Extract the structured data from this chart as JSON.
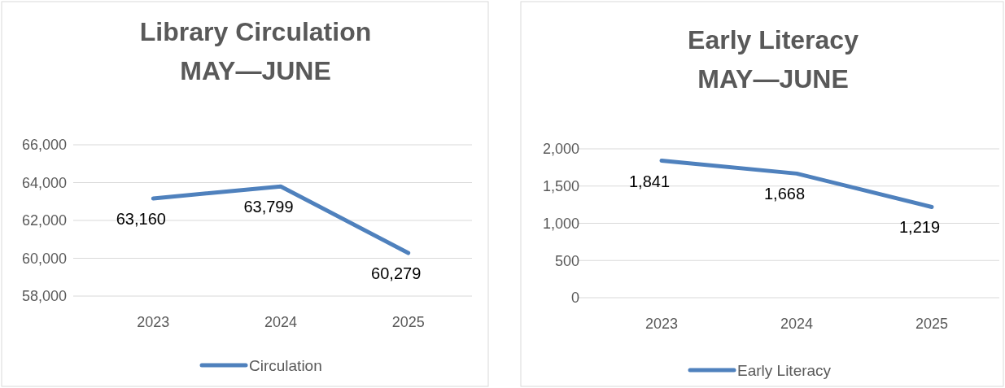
{
  "chart_data": [
    {
      "type": "line",
      "title": "Library Circulation",
      "subtitle": "MAY—JUNE",
      "categories": [
        "2023",
        "2024",
        "2025"
      ],
      "series": [
        {
          "name": "Circulation",
          "color": "#4f81bd",
          "values": [
            63160,
            63799,
            60279
          ],
          "value_labels": [
            "63,160",
            "63,799",
            "60,279"
          ]
        }
      ],
      "ylim": [
        58000,
        66000
      ],
      "yticks": [
        {
          "value": 58000,
          "label": "58,000"
        },
        {
          "value": 60000,
          "label": "60,000"
        },
        {
          "value": 62000,
          "label": "62,000"
        },
        {
          "value": 64000,
          "label": "64,000"
        },
        {
          "value": 66000,
          "label": "66,000"
        }
      ],
      "grid": "y",
      "legend": "bottom",
      "marker": "none",
      "line_style": "solid"
    },
    {
      "type": "line",
      "title": "Early Literacy",
      "subtitle": "MAY—JUNE",
      "categories": [
        "2023",
        "2024",
        "2025"
      ],
      "series": [
        {
          "name": "Early Literacy",
          "color": "#4f81bd",
          "values": [
            1841,
            1668,
            1219
          ],
          "value_labels": [
            "1,841",
            "1,668",
            "1,219"
          ]
        }
      ],
      "ylim": [
        0,
        2000
      ],
      "yticks": [
        0,
        500,
        {
          "value": 1000,
          "label": "1,000"
        },
        {
          "value": 1500,
          "label": "1,500"
        },
        {
          "value": 2000,
          "label": "2,000"
        }
      ],
      "grid": "y",
      "legend": "bottom",
      "marker": "none",
      "line_style": "solid"
    }
  ]
}
